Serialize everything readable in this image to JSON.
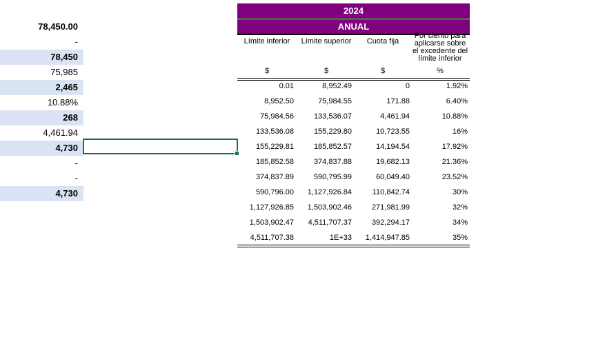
{
  "left_column": [
    {
      "value": "78,450.00",
      "shaded": false,
      "bold": true
    },
    {
      "value": "-",
      "shaded": false,
      "bold": false
    },
    {
      "value": "78,450",
      "shaded": true,
      "bold": true
    },
    {
      "value": "75,985",
      "shaded": false,
      "bold": false
    },
    {
      "value": "2,465",
      "shaded": true,
      "bold": true
    },
    {
      "value": "10.88%",
      "shaded": false,
      "bold": false
    },
    {
      "value": "268",
      "shaded": true,
      "bold": true
    },
    {
      "value": "4,461.94",
      "shaded": false,
      "bold": false
    },
    {
      "value": "4,730",
      "shaded": true,
      "bold": true
    },
    {
      "value": "-",
      "shaded": false,
      "bold": false
    },
    {
      "value": "-",
      "shaded": false,
      "bold": false
    },
    {
      "value": "4,730",
      "shaded": true,
      "bold": true
    }
  ],
  "table": {
    "year": "2024",
    "period": "ANUAL",
    "headers": [
      "Límite inferior",
      "Límite superior",
      "Cuota fija",
      "Por ciento para aplicarse sobre el excedente del límite inferior"
    ],
    "units": [
      "$",
      "$",
      "$",
      "%"
    ],
    "rows": [
      [
        "0.01",
        "8,952.49",
        "0",
        "1.92%"
      ],
      [
        "8,952.50",
        "75,984.55",
        "171.88",
        "6.40%"
      ],
      [
        "75,984.56",
        "133,536.07",
        "4,461.94",
        "10.88%"
      ],
      [
        "133,536.08",
        "155,229.80",
        "10,723.55",
        "16%"
      ],
      [
        "155,229.81",
        "185,852.57",
        "14,194.54",
        "17.92%"
      ],
      [
        "185,852.58",
        "374,837.88",
        "19,682.13",
        "21.36%"
      ],
      [
        "374,837.89",
        "590,795.99",
        "60,049.40",
        "23.52%"
      ],
      [
        "590,796.00",
        "1,127,926.84",
        "110,842.74",
        "30%"
      ],
      [
        "1,127,926.85",
        "1,503,902.46",
        "271,981.99",
        "32%"
      ],
      [
        "1,503,902.47",
        "4,511,707.37",
        "392,294.17",
        "34%"
      ],
      [
        "4,511,707.38",
        "1E+33",
        "1,414,947.85",
        "35%"
      ]
    ]
  },
  "colors": {
    "header_band": "#800080",
    "shaded_cell": "#dae3f3",
    "selection": "#1e7145"
  }
}
